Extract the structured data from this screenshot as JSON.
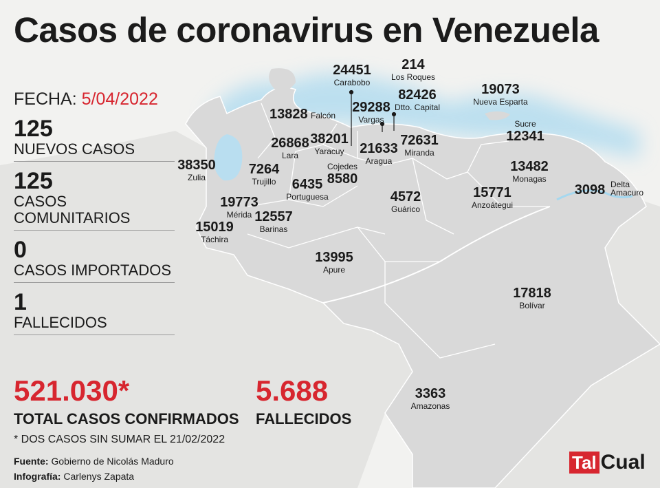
{
  "title": "Casos de coronavirus en Venezuela",
  "fecha_label": "FECHA:",
  "fecha_value": "5/04/2022",
  "stats": [
    {
      "value": "125",
      "label": "NUEVOS CASOS"
    },
    {
      "value": "125",
      "label": "CASOS COMUNITARIOS"
    },
    {
      "value": "0",
      "label": "CASOS IMPORTADOS"
    },
    {
      "value": "1",
      "label": "FALLECIDOS"
    }
  ],
  "total_cases": "521.030*",
  "total_cases_label": "TOTAL CASOS CONFIRMADOS",
  "total_deaths": "5.688",
  "total_deaths_label": "FALLECIDOS",
  "note": "* DOS CASOS SIN SUMAR EL 21/02/2022",
  "source_label": "Fuente:",
  "source_value": "Gobierno de Nicolás Maduro",
  "infografia_label": "Infografía:",
  "infografia_value": "Carlenys Zapata",
  "logo": {
    "part1": "Tal",
    "part2": "Cual"
  },
  "colors": {
    "accent": "#d7262f",
    "land": "#d9d9d9",
    "sea": "#c6e6f3",
    "background": "#f2f2f0"
  },
  "states": [
    {
      "name": "Zulia",
      "cases": "38350"
    },
    {
      "name": "Falcón",
      "cases": "13828"
    },
    {
      "name": "Lara",
      "cases": "26868"
    },
    {
      "name": "Yaracuy",
      "cases": "38201"
    },
    {
      "name": "Carabobo",
      "cases": "24451"
    },
    {
      "name": "Los Roques",
      "cases": "214"
    },
    {
      "name": "Vargas",
      "cases": "29288"
    },
    {
      "name": "Dtto. Capital",
      "cases": "82426"
    },
    {
      "name": "Aragua",
      "cases": "21633"
    },
    {
      "name": "Miranda",
      "cases": "72631"
    },
    {
      "name": "Nueva Esparta",
      "cases": "19073"
    },
    {
      "name": "Sucre",
      "cases": "12341"
    },
    {
      "name": "Monagas",
      "cases": "13482"
    },
    {
      "name": "Delta Amacuro",
      "cases": "3098"
    },
    {
      "name": "Trujillo",
      "cases": "7264"
    },
    {
      "name": "Portuguesa",
      "cases": "6435"
    },
    {
      "name": "Cojedes",
      "cases": "8580"
    },
    {
      "name": "Guárico",
      "cases": "4572"
    },
    {
      "name": "Anzoátegui",
      "cases": "15771"
    },
    {
      "name": "Mérida",
      "cases": "19773"
    },
    {
      "name": "Táchira",
      "cases": "15019"
    },
    {
      "name": "Barinas",
      "cases": "12557"
    },
    {
      "name": "Apure",
      "cases": "13995"
    },
    {
      "name": "Bolívar",
      "cases": "17818"
    },
    {
      "name": "Amazonas",
      "cases": "3363"
    }
  ]
}
